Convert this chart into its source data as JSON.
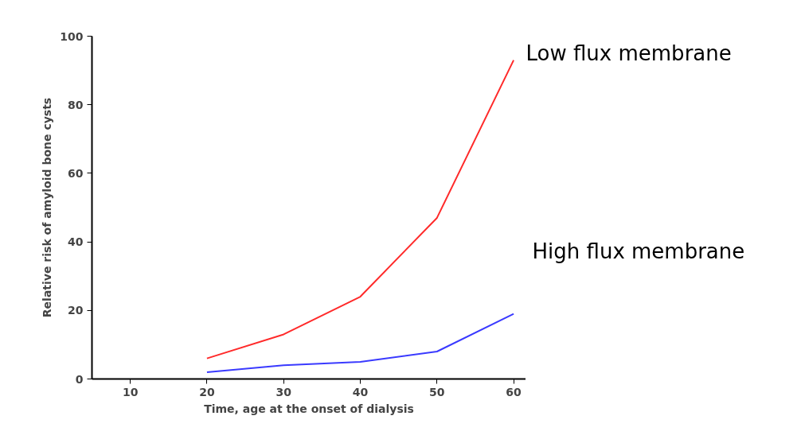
{
  "chart_data": {
    "type": "line",
    "xlabel": "Time, age at the onset of dialysis",
    "ylabel": "Relative risk of amyloid bone cysts",
    "x": [
      20,
      30,
      40,
      50,
      60
    ],
    "series": [
      {
        "name": "Low flux membrane",
        "color": "#ff2a2a",
        "values": [
          6,
          13,
          24,
          47,
          93
        ]
      },
      {
        "name": "High flux membrane",
        "color": "#3a3aff",
        "values": [
          2,
          4,
          5,
          8,
          19
        ]
      }
    ],
    "xlim": [
      5,
      61.6
    ],
    "ylim": [
      0,
      100
    ],
    "xticks": [
      10,
      20,
      30,
      40,
      50,
      60
    ],
    "yticks": [
      0,
      20,
      40,
      60,
      80,
      100
    ],
    "grid": false,
    "line_style": "solid"
  }
}
